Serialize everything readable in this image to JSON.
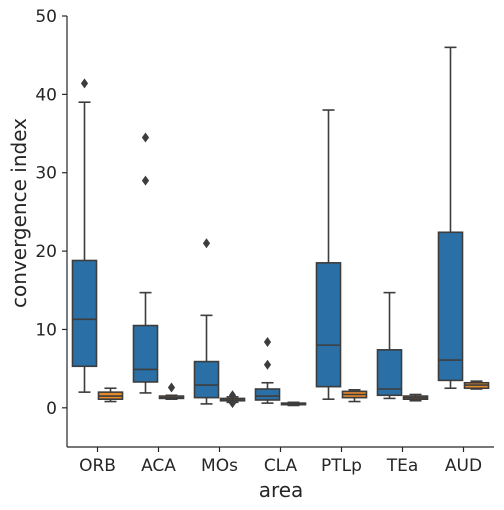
{
  "chart_data": {
    "type": "box",
    "xlabel": "area",
    "ylabel": "convergence index",
    "ylim": [
      -5,
      50
    ],
    "yticks": [
      0,
      10,
      20,
      30,
      40,
      50
    ],
    "categories": [
      "ORB",
      "ACA",
      "MOs",
      "CLA",
      "PTLp",
      "TEa",
      "AUD"
    ],
    "grid": false,
    "legend": "none",
    "series": [
      {
        "color": "#2a6fa6",
        "boxes": [
          {
            "whislo": 2.0,
            "q1": 5.3,
            "med": 11.3,
            "q3": 18.8,
            "whishi": 39.0,
            "fliers": [
              41.4
            ]
          },
          {
            "whislo": 1.9,
            "q1": 3.3,
            "med": 4.9,
            "q3": 10.5,
            "whishi": 14.7,
            "fliers": [
              29.0,
              34.5
            ]
          },
          {
            "whislo": 0.5,
            "q1": 1.3,
            "med": 2.9,
            "q3": 5.9,
            "whishi": 11.8,
            "fliers": [
              21.0
            ]
          },
          {
            "whislo": 0.6,
            "q1": 1.0,
            "med": 1.5,
            "q3": 2.4,
            "whishi": 3.2,
            "fliers": [
              5.5,
              8.4
            ]
          },
          {
            "whislo": 1.1,
            "q1": 2.7,
            "med": 8.0,
            "q3": 18.5,
            "whishi": 38.0,
            "fliers": []
          },
          {
            "whislo": 1.2,
            "q1": 1.6,
            "med": 2.4,
            "q3": 7.4,
            "whishi": 14.7,
            "fliers": []
          },
          {
            "whislo": 2.5,
            "q1": 3.5,
            "med": 6.1,
            "q3": 22.4,
            "whishi": 46.0,
            "fliers": []
          }
        ]
      },
      {
        "color": "#e6892b",
        "boxes": [
          {
            "whislo": 0.8,
            "q1": 1.1,
            "med": 1.5,
            "q3": 2.0,
            "whishi": 2.5,
            "fliers": []
          },
          {
            "whislo": 1.1,
            "q1": 1.2,
            "med": 1.3,
            "q3": 1.5,
            "whishi": 1.6,
            "fliers": [
              2.6
            ]
          },
          {
            "whislo": 0.7,
            "q1": 0.9,
            "med": 1.0,
            "q3": 1.2,
            "whishi": 1.4,
            "fliers": [
              0.6,
              1.6
            ]
          },
          {
            "whislo": 0.3,
            "q1": 0.4,
            "med": 0.5,
            "q3": 0.6,
            "whishi": 0.7,
            "fliers": []
          },
          {
            "whislo": 0.8,
            "q1": 1.3,
            "med": 1.7,
            "q3": 2.1,
            "whishi": 2.3,
            "fliers": []
          },
          {
            "whislo": 0.9,
            "q1": 1.1,
            "med": 1.3,
            "q3": 1.5,
            "whishi": 1.7,
            "fliers": []
          },
          {
            "whislo": 2.4,
            "q1": 2.5,
            "med": 2.9,
            "q3": 3.2,
            "whishi": 3.4,
            "fliers": []
          }
        ]
      }
    ]
  }
}
